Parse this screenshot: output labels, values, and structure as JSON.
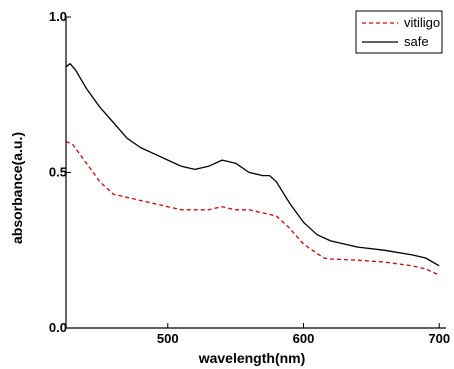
{
  "chart_data": {
    "type": "line",
    "title": "",
    "xlabel": "wavelength(nm)",
    "ylabel": "absorbance(a.u.)",
    "xlim": [
      425,
      705
    ],
    "ylim": [
      0.0,
      1.0
    ],
    "x_ticks": [
      500,
      600,
      700
    ],
    "x_tick_labels": [
      "500",
      "600",
      "700"
    ],
    "y_ticks": [
      0.0,
      0.5,
      1.0
    ],
    "y_tick_labels": [
      "0.0",
      "0.5",
      "1.0"
    ],
    "grid": false,
    "legend_position": "top-right",
    "colors": {
      "vitiligo": "#e00000",
      "safe": "#000000"
    },
    "series": [
      {
        "name": "vitiligo",
        "style": "dashed",
        "x": [
          425,
          430,
          440,
          450,
          460,
          470,
          480,
          490,
          500,
          510,
          520,
          530,
          540,
          550,
          560,
          570,
          580,
          590,
          600,
          610,
          615,
          620,
          640,
          660,
          680,
          690,
          700
        ],
        "y": [
          0.6,
          0.59,
          0.53,
          0.47,
          0.43,
          0.42,
          0.41,
          0.4,
          0.39,
          0.38,
          0.38,
          0.38,
          0.39,
          0.38,
          0.38,
          0.37,
          0.36,
          0.32,
          0.27,
          0.24,
          0.225,
          0.222,
          0.218,
          0.212,
          0.2,
          0.19,
          0.17
        ]
      },
      {
        "name": "safe",
        "style": "solid",
        "x": [
          425,
          428,
          432,
          440,
          450,
          460,
          470,
          480,
          490,
          500,
          510,
          520,
          530,
          540,
          550,
          560,
          570,
          575,
          580,
          590,
          600,
          610,
          620,
          640,
          660,
          680,
          690,
          700
        ],
        "y": [
          0.84,
          0.85,
          0.83,
          0.77,
          0.71,
          0.66,
          0.61,
          0.58,
          0.56,
          0.54,
          0.52,
          0.51,
          0.52,
          0.54,
          0.53,
          0.5,
          0.49,
          0.49,
          0.47,
          0.4,
          0.34,
          0.3,
          0.28,
          0.26,
          0.25,
          0.235,
          0.225,
          0.2
        ]
      }
    ]
  }
}
